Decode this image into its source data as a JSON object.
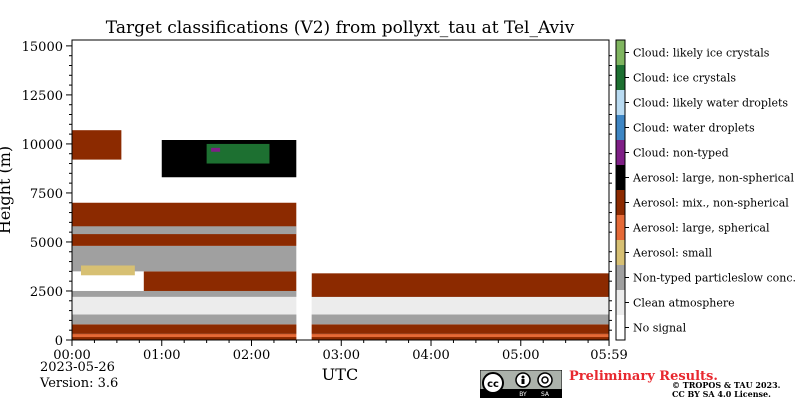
{
  "chart_data": {
    "type": "heatmap",
    "title": "Target classifications (V2) from pollyxt_tau at Tel_Aviv",
    "xlabel": "UTC",
    "ylabel": "Height (m)",
    "x_range_hours": [
      0,
      5.983
    ],
    "ylim": [
      0,
      15300
    ],
    "x_ticks": [
      "00:00",
      "01:00",
      "02:00",
      "03:00",
      "04:00",
      "05:00",
      "05:59"
    ],
    "y_ticks": [
      "0",
      "2500",
      "5000",
      "7500",
      "10000",
      "12500",
      "15000"
    ],
    "data_gap_utc": [
      2.5,
      2.67
    ],
    "classes": [
      {
        "name": "No signal",
        "color": "#ffffff"
      },
      {
        "name": "Clean atmosphere",
        "color": "#ececec"
      },
      {
        "name": "Non-typed particleslow conc.",
        "color": "#a0a0a0"
      },
      {
        "name": "Aerosol: small",
        "color": "#d7c073"
      },
      {
        "name": "Aerosol: large, spherical",
        "color": "#e56a37"
      },
      {
        "name": "Aerosol: mix., non-spherical",
        "color": "#8c2a00"
      },
      {
        "name": "Aerosol: large, non-spherical",
        "color": "#000000"
      },
      {
        "name": "Cloud: non-typed",
        "color": "#7f1f86"
      },
      {
        "name": "Cloud: water droplets",
        "color": "#3e86c4"
      },
      {
        "name": "Cloud: likely water droplets",
        "color": "#b9dbf2"
      },
      {
        "name": "Cloud: ice crystals",
        "color": "#1d7031"
      },
      {
        "name": "Cloud: likely ice crystals",
        "color": "#7fb55f"
      }
    ],
    "layers": [
      {
        "class": "Aerosol: mix., non-spherical",
        "start": 0.0,
        "end": 5.983,
        "bottom": 0,
        "top": 350
      },
      {
        "class": "Aerosol: large, spherical",
        "start": 0.0,
        "end": 5.983,
        "bottom": 150,
        "top": 300
      },
      {
        "class": "Aerosol: mix., non-spherical",
        "start": 0.0,
        "end": 5.983,
        "bottom": 350,
        "top": 800
      },
      {
        "class": "Non-typed particleslow conc.",
        "start": 0.0,
        "end": 5.983,
        "bottom": 800,
        "top": 1300
      },
      {
        "class": "Clean atmosphere",
        "start": 0.0,
        "end": 5.983,
        "bottom": 1300,
        "top": 2200
      },
      {
        "class": "Non-typed particleslow conc.",
        "start": 0.0,
        "end": 5.983,
        "bottom": 2200,
        "top": 2500
      },
      {
        "class": "Aerosol: mix., non-spherical",
        "start": 0.8,
        "end": 2.5,
        "bottom": 2500,
        "top": 3500
      },
      {
        "class": "Aerosol: mix., non-spherical",
        "start": 2.67,
        "end": 5.983,
        "bottom": 2200,
        "top": 3400
      },
      {
        "class": "Non-typed particleslow conc.",
        "start": 0.0,
        "end": 2.5,
        "bottom": 3500,
        "top": 4800
      },
      {
        "class": "Aerosol: small",
        "start": 0.1,
        "end": 0.7,
        "bottom": 3300,
        "top": 3800
      },
      {
        "class": "Aerosol: mix., non-spherical",
        "start": 0.0,
        "end": 2.5,
        "bottom": 4800,
        "top": 7000
      },
      {
        "class": "Non-typed particleslow conc.",
        "start": 0.0,
        "end": 2.5,
        "bottom": 5400,
        "top": 5800
      },
      {
        "class": "Aerosol: mix., non-spherical",
        "start": 0.0,
        "end": 0.55,
        "bottom": 9200,
        "top": 10700
      },
      {
        "class": "Aerosol: large, non-spherical",
        "start": 1.0,
        "end": 2.5,
        "bottom": 8300,
        "top": 10200
      },
      {
        "class": "Cloud: ice crystals",
        "start": 1.5,
        "end": 2.2,
        "bottom": 9000,
        "top": 10000
      },
      {
        "class": "Cloud: non-typed",
        "start": 1.55,
        "end": 1.65,
        "bottom": 9600,
        "top": 9800
      }
    ]
  },
  "date_label": "2023-05-26",
  "version_label": "Version: 3.6",
  "preliminary_label": "Preliminary Results.",
  "copyright_line1": "© TROPOS & TAU 2023.",
  "copyright_line2": "CC BY SA 4.0 License.",
  "license_badge_labels": [
    "BY",
    "SA"
  ]
}
